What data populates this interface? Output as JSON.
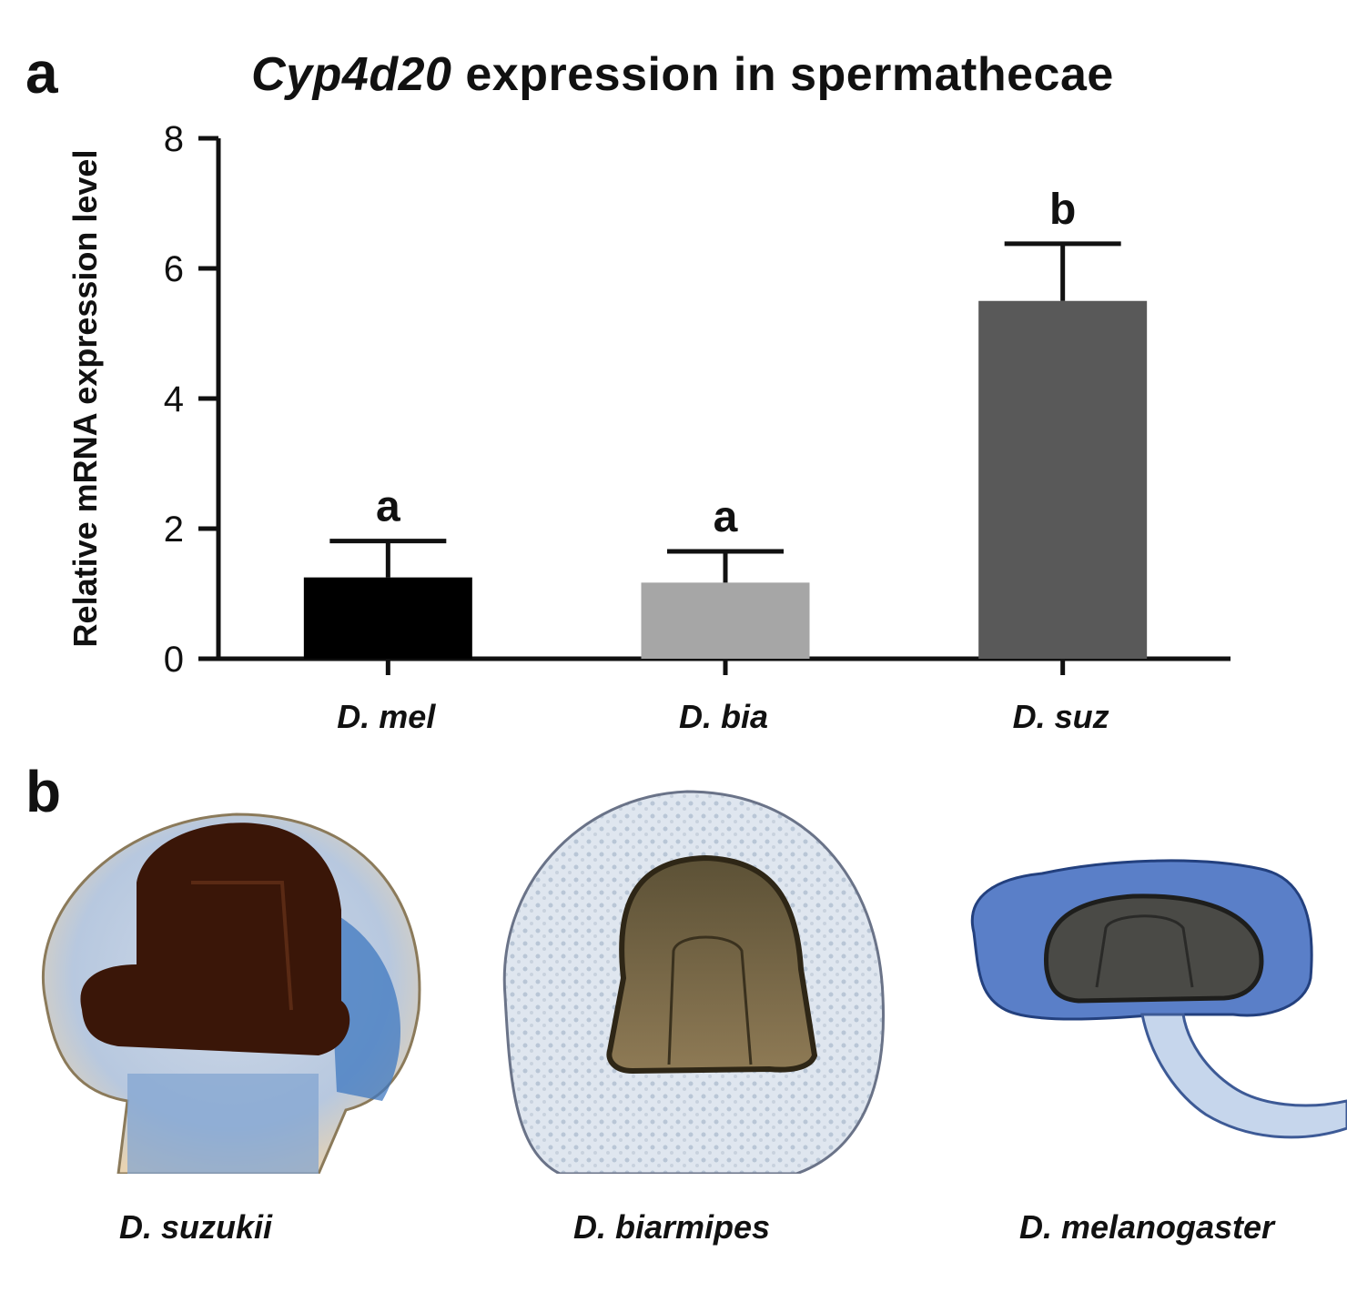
{
  "panel_a_label": "a",
  "panel_b_label": "b",
  "title_gene": "Cyp4d20",
  "title_rest": " expression in spermathecae",
  "chart_data": {
    "type": "bar",
    "ylabel": "Relative mRNA expression level",
    "xlabel": "",
    "ylim": [
      0,
      8
    ],
    "yticks": [
      0,
      2,
      4,
      6,
      8
    ],
    "categories": [
      "D. mel",
      "D. bia",
      "D. suz"
    ],
    "values": [
      1.25,
      1.17,
      5.5
    ],
    "errors": [
      0.56,
      0.48,
      0.88
    ],
    "significance": [
      "a",
      "a",
      "b"
    ],
    "colors": [
      "#000000",
      "#a6a6a6",
      "#595959"
    ],
    "grid": false,
    "legend": "none"
  },
  "micrographs": [
    {
      "caption": "D. suzukii",
      "icon": "spermatheca-dark-brown"
    },
    {
      "caption": "D. biarmipes",
      "icon": "spermatheca-light-brown"
    },
    {
      "caption": "D. melanogaster",
      "icon": "spermatheca-gray-blue"
    }
  ]
}
